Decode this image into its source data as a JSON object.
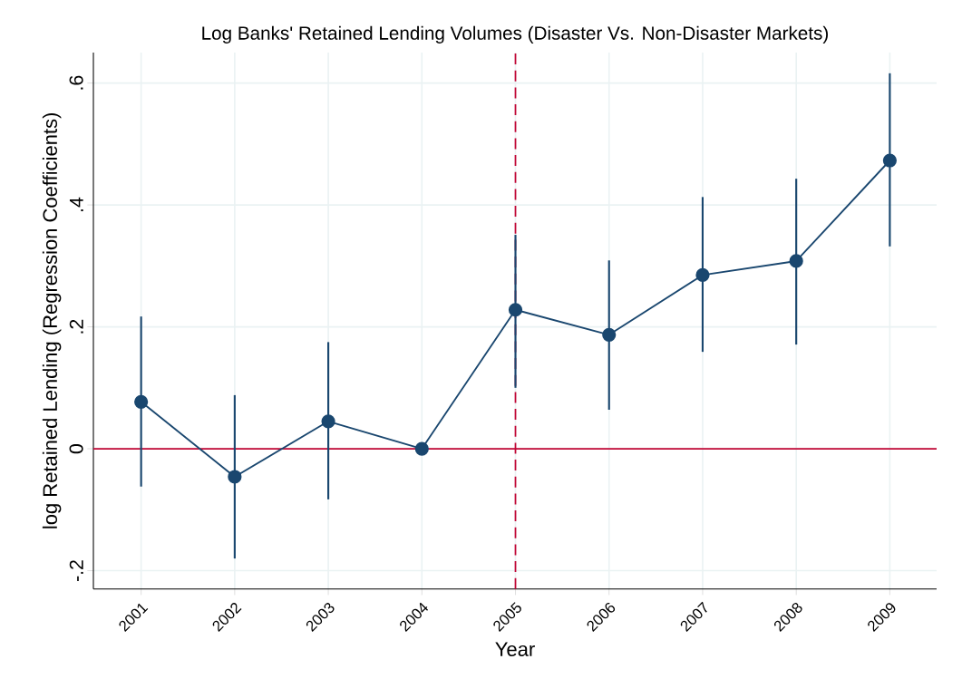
{
  "chart_data": {
    "type": "line",
    "title": "Log Banks' Retained Lending Volumes (Disaster Vs. Non-Disaster Markets)",
    "xlabel": "Year",
    "ylabel": "log Retained Lending (Regression Coefficients)",
    "x": [
      2001,
      2002,
      2003,
      2004,
      2005,
      2006,
      2007,
      2008,
      2009
    ],
    "series": [
      {
        "color": "#1a476f",
        "values": [
          0.077,
          -0.046,
          0.045,
          0.0,
          0.228,
          0.187,
          0.285,
          0.308,
          0.473
        ],
        "errors": [
          [
            -0.062,
            0.217
          ],
          [
            -0.18,
            0.088
          ],
          [
            -0.083,
            0.175
          ],
          null,
          [
            0.1,
            0.351
          ],
          [
            0.064,
            0.309
          ],
          [
            0.159,
            0.413
          ],
          [
            0.171,
            0.443
          ],
          [
            0.332,
            0.616
          ]
        ]
      }
    ],
    "xlim": [
      2000.49,
      2009.5
    ],
    "xticks": [
      2001,
      2002,
      2003,
      2004,
      2005,
      2006,
      2007,
      2008,
      2009
    ],
    "ylim": [
      -0.23,
      0.65
    ],
    "yticks": [
      {
        "value": -0.2,
        "label": "-.2"
      },
      0,
      {
        "value": 0.2,
        "label": ".2"
      },
      {
        "value": 0.4,
        "label": ".4"
      },
      {
        "value": 0.6,
        "label": ".6"
      }
    ],
    "ref_lines": [
      {
        "axis": "y",
        "value": 0,
        "color": "#c10534",
        "line_style": "solid"
      },
      {
        "axis": "x",
        "value": 2005,
        "color": "#c10534",
        "line_style": "dashed"
      }
    ],
    "grid": true,
    "marker": "circle",
    "line_style": "solid"
  }
}
